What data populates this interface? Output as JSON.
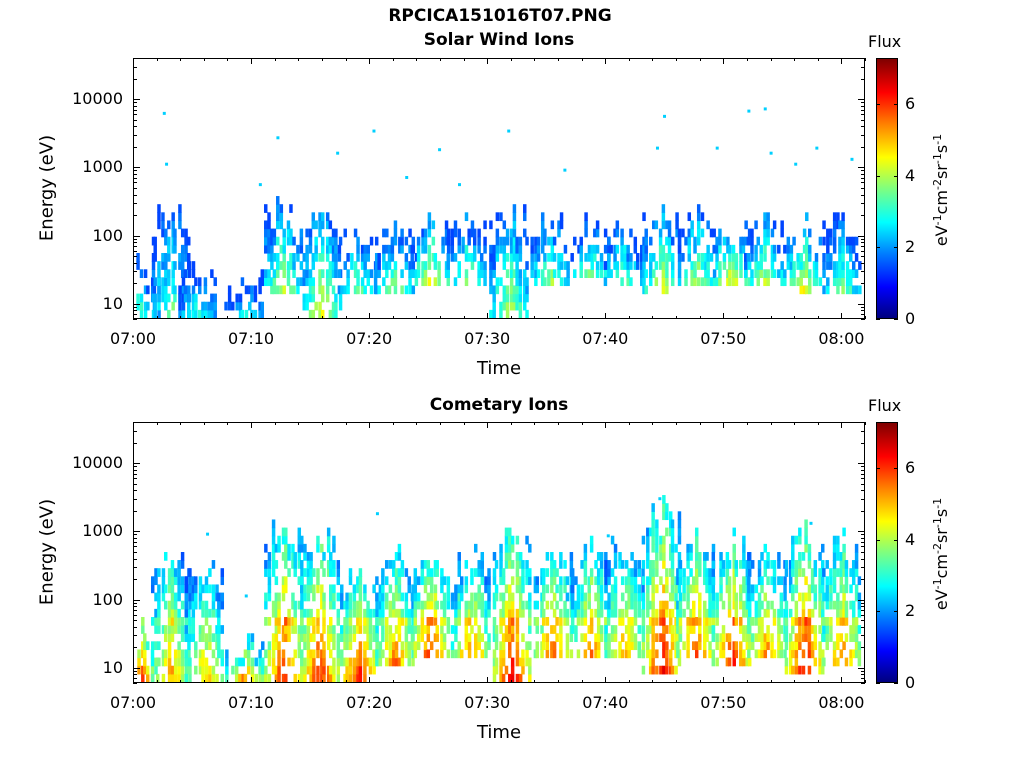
{
  "figure_title": "RPCICA151016T07.PNG",
  "colorbar": {
    "title": "Flux",
    "unit_parts": [
      "eV",
      "-1",
      "cm",
      "-2",
      "sr",
      "-1",
      "s",
      "-1"
    ],
    "ticks": [
      "0",
      "2",
      "4",
      "6"
    ],
    "range": [
      0,
      7.3
    ],
    "colormap": "jet"
  },
  "chart_data": [
    {
      "type": "heatmap",
      "title": "Solar Wind Ions",
      "xlabel": "Time",
      "ylabel": "Energy (eV)",
      "yscale": "log",
      "ylim": [
        6,
        40000
      ],
      "xlim": [
        "07:00",
        "08:02"
      ],
      "xticks": [
        "07:00",
        "07:10",
        "07:20",
        "07:30",
        "07:40",
        "07:50",
        "08:00"
      ],
      "yticks": [
        "10",
        "100",
        "1000",
        "10000"
      ],
      "grid": false,
      "bursts": [
        {
          "t": 0.3,
          "emin": 6,
          "emax": 35,
          "flux": 3.0
        },
        {
          "t": 2.9,
          "emin": 6,
          "emax": 200,
          "flux": 3.2
        },
        {
          "t": 5.2,
          "emin": 6,
          "emax": 30,
          "flux": 2.8
        },
        {
          "t": 9.2,
          "emin": 6,
          "emax": 25,
          "flux": 2.8
        },
        {
          "t": 12.5,
          "emin": 12,
          "emax": 250,
          "flux": 3.8
        },
        {
          "t": 15.8,
          "emin": 6,
          "emax": 200,
          "flux": 4.0
        },
        {
          "t": 18.8,
          "emin": 14,
          "emax": 100,
          "flux": 3.3
        },
        {
          "t": 22.0,
          "emin": 14,
          "emax": 150,
          "flux": 3.4
        },
        {
          "t": 25.1,
          "emin": 20,
          "emax": 130,
          "flux": 4.0
        },
        {
          "t": 28.2,
          "emin": 20,
          "emax": 150,
          "flux": 3.3
        },
        {
          "t": 31.8,
          "emin": 6,
          "emax": 200,
          "flux": 3.8
        },
        {
          "t": 35.3,
          "emin": 20,
          "emax": 180,
          "flux": 3.4
        },
        {
          "t": 38.7,
          "emin": 25,
          "emax": 120,
          "flux": 3.2
        },
        {
          "t": 41.5,
          "emin": 20,
          "emax": 120,
          "flux": 3.2
        },
        {
          "t": 44.8,
          "emin": 12,
          "emax": 220,
          "flux": 4.0
        },
        {
          "t": 47.8,
          "emin": 20,
          "emax": 150,
          "flux": 3.6
        },
        {
          "t": 50.8,
          "emin": 18,
          "emax": 150,
          "flux": 4.2
        },
        {
          "t": 53.5,
          "emin": 20,
          "emax": 150,
          "flux": 3.6
        },
        {
          "t": 56.8,
          "emin": 12,
          "emax": 120,
          "flux": 4.3
        },
        {
          "t": 60.2,
          "emin": 12,
          "emax": 160,
          "flux": 3.3
        }
      ],
      "sparse_points": [
        {
          "t": 2.3,
          "e": 6200
        },
        {
          "t": 2.5,
          "e": 1100
        },
        {
          "t": 12.0,
          "e": 2700
        },
        {
          "t": 17.1,
          "e": 1600
        },
        {
          "t": 20.2,
          "e": 3400
        },
        {
          "t": 25.8,
          "e": 1800
        },
        {
          "t": 31.7,
          "e": 3400
        },
        {
          "t": 44.4,
          "e": 1900
        },
        {
          "t": 45.0,
          "e": 5600
        },
        {
          "t": 49.5,
          "e": 1900
        },
        {
          "t": 52.2,
          "e": 6700
        },
        {
          "t": 53.6,
          "e": 7200
        },
        {
          "t": 54.1,
          "e": 1600
        },
        {
          "t": 56.2,
          "e": 1100
        },
        {
          "t": 58.0,
          "e": 1900
        },
        {
          "t": 61.0,
          "e": 1300
        },
        {
          "t": 10.5,
          "e": 550
        },
        {
          "t": 23.0,
          "e": 700
        },
        {
          "t": 27.5,
          "e": 550
        },
        {
          "t": 36.5,
          "e": 900
        }
      ]
    },
    {
      "type": "heatmap",
      "title": "Cometary Ions",
      "xlabel": "Time",
      "ylabel": "Energy (eV)",
      "yscale": "log",
      "ylim": [
        6,
        40000
      ],
      "xlim": [
        "07:00",
        "08:02"
      ],
      "xticks": [
        "07:00",
        "07:10",
        "07:20",
        "07:30",
        "07:40",
        "07:50",
        "08:00"
      ],
      "yticks": [
        "10",
        "100",
        "1000",
        "10000"
      ],
      "grid": false,
      "bursts": [
        {
          "t": 0.3,
          "emin": 6,
          "emax": 35,
          "flux": 5.8
        },
        {
          "t": 2.9,
          "emin": 6,
          "emax": 500,
          "flux": 4.8
        },
        {
          "t": 5.8,
          "emin": 6,
          "emax": 300,
          "flux": 4.6
        },
        {
          "t": 9.2,
          "emin": 6,
          "emax": 20,
          "flux": 5.0
        },
        {
          "t": 12.6,
          "emin": 6,
          "emax": 1100,
          "flux": 5.8
        },
        {
          "t": 15.6,
          "emin": 6,
          "emax": 900,
          "flux": 5.8
        },
        {
          "t": 19.0,
          "emin": 6,
          "emax": 200,
          "flux": 5.8
        },
        {
          "t": 22.0,
          "emin": 10,
          "emax": 450,
          "flux": 5.2
        },
        {
          "t": 25.0,
          "emin": 12,
          "emax": 400,
          "flux": 5.8
        },
        {
          "t": 28.5,
          "emin": 12,
          "emax": 350,
          "flux": 5.2
        },
        {
          "t": 32.0,
          "emin": 6,
          "emax": 800,
          "flux": 6.0
        },
        {
          "t": 35.5,
          "emin": 14,
          "emax": 500,
          "flux": 5.3
        },
        {
          "t": 38.7,
          "emin": 12,
          "emax": 500,
          "flux": 5.2
        },
        {
          "t": 41.6,
          "emin": 12,
          "emax": 600,
          "flux": 5.0
        },
        {
          "t": 44.8,
          "emin": 8,
          "emax": 2000,
          "flux": 6.0
        },
        {
          "t": 47.7,
          "emin": 12,
          "emax": 700,
          "flux": 5.6
        },
        {
          "t": 50.8,
          "emin": 10,
          "emax": 600,
          "flux": 5.8
        },
        {
          "t": 53.8,
          "emin": 14,
          "emax": 700,
          "flux": 5.0
        },
        {
          "t": 57.0,
          "emin": 8,
          "emax": 800,
          "flux": 6.0
        },
        {
          "t": 60.2,
          "emin": 10,
          "emax": 700,
          "flux": 5.2
        }
      ],
      "sparse_points": [
        {
          "t": 6.0,
          "e": 900
        },
        {
          "t": 9.3,
          "e": 110
        },
        {
          "t": 20.5,
          "e": 1800
        },
        {
          "t": 44.6,
          "e": 3000
        },
        {
          "t": 57.5,
          "e": 1300
        },
        {
          "t": 40.2,
          "e": 850
        }
      ]
    }
  ]
}
